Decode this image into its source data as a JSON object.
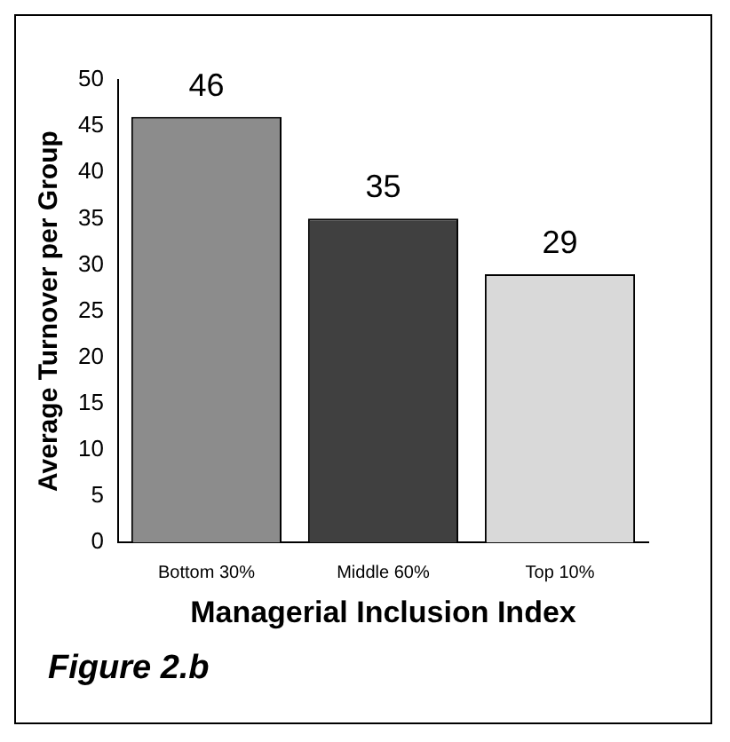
{
  "chart_data": {
    "type": "bar",
    "xlabel": "Managerial Inclusion Index",
    "ylabel": "Average Turnover per Group",
    "categories": [
      "Bottom 30%",
      "Middle 60%",
      "Top 10%"
    ],
    "values": [
      46,
      35,
      29
    ],
    "colors": [
      "#8c8c8c",
      "#404040",
      "#d9d9d9"
    ],
    "ylim": [
      0,
      50
    ],
    "yticks": [
      0,
      5,
      10,
      15,
      20,
      25,
      30,
      35,
      40,
      45,
      50
    ],
    "data_labels": true,
    "annotations": [
      "Figure 2.b"
    ]
  }
}
